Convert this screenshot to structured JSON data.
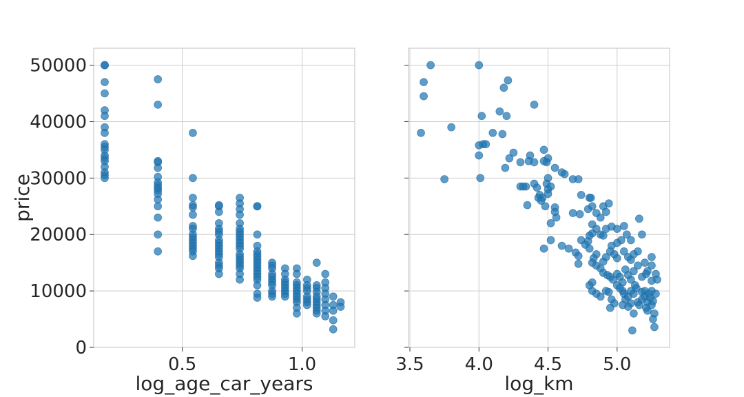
{
  "chart_data": [
    {
      "type": "scatter",
      "xlabel": "log_age_car_years",
      "ylabel": "price",
      "xlim": [
        0.13,
        1.22
      ],
      "ylim": [
        0,
        53000
      ],
      "xticks": [
        0.5,
        1.0
      ],
      "xtick_labels": [
        "0.5",
        "1.0"
      ],
      "yticks": [
        0,
        10000,
        20000,
        30000,
        40000,
        50000
      ],
      "ytick_labels": [
        "0",
        "10000",
        "20000",
        "30000",
        "40000",
        "50000"
      ],
      "grid": true,
      "color": "#1f77b4",
      "points": [
        [
          0.176,
          50000
        ],
        [
          0.176,
          50000
        ],
        [
          0.176,
          47000
        ],
        [
          0.176,
          45000
        ],
        [
          0.176,
          42000
        ],
        [
          0.176,
          41000
        ],
        [
          0.176,
          39000
        ],
        [
          0.176,
          38000
        ],
        [
          0.176,
          36000
        ],
        [
          0.176,
          35500
        ],
        [
          0.176,
          35000
        ],
        [
          0.176,
          34000
        ],
        [
          0.176,
          33500
        ],
        [
          0.176,
          33000
        ],
        [
          0.176,
          32000
        ],
        [
          0.176,
          31000
        ],
        [
          0.176,
          30500
        ],
        [
          0.176,
          30000
        ],
        [
          0.398,
          47500
        ],
        [
          0.398,
          43000
        ],
        [
          0.398,
          33000
        ],
        [
          0.398,
          32800
        ],
        [
          0.398,
          31800
        ],
        [
          0.398,
          30200
        ],
        [
          0.398,
          29200
        ],
        [
          0.398,
          28700
        ],
        [
          0.398,
          28200
        ],
        [
          0.398,
          27800
        ],
        [
          0.398,
          27200
        ],
        [
          0.398,
          26200
        ],
        [
          0.398,
          25000
        ],
        [
          0.398,
          23000
        ],
        [
          0.398,
          20000
        ],
        [
          0.398,
          17000
        ],
        [
          0.544,
          38000
        ],
        [
          0.544,
          30000
        ],
        [
          0.544,
          26500
        ],
        [
          0.544,
          25200
        ],
        [
          0.544,
          24800
        ],
        [
          0.544,
          23500
        ],
        [
          0.544,
          21500
        ],
        [
          0.544,
          21000
        ],
        [
          0.544,
          20000
        ],
        [
          0.544,
          19500
        ],
        [
          0.544,
          19000
        ],
        [
          0.544,
          18500
        ],
        [
          0.544,
          18000
        ],
        [
          0.544,
          17500
        ],
        [
          0.544,
          17000
        ],
        [
          0.544,
          16200
        ],
        [
          0.653,
          25200
        ],
        [
          0.653,
          25000
        ],
        [
          0.653,
          24000
        ],
        [
          0.653,
          22000
        ],
        [
          0.653,
          21000
        ],
        [
          0.653,
          20500
        ],
        [
          0.653,
          20000
        ],
        [
          0.653,
          19000
        ],
        [
          0.653,
          18500
        ],
        [
          0.653,
          18000
        ],
        [
          0.653,
          17500
        ],
        [
          0.653,
          17000
        ],
        [
          0.653,
          16500
        ],
        [
          0.653,
          16000
        ],
        [
          0.653,
          15000
        ],
        [
          0.653,
          14500
        ],
        [
          0.653,
          14000
        ],
        [
          0.653,
          13000
        ],
        [
          0.74,
          26500
        ],
        [
          0.74,
          25500
        ],
        [
          0.74,
          24500
        ],
        [
          0.74,
          23500
        ],
        [
          0.74,
          22000
        ],
        [
          0.74,
          21000
        ],
        [
          0.74,
          20500
        ],
        [
          0.74,
          20000
        ],
        [
          0.74,
          19500
        ],
        [
          0.74,
          19000
        ],
        [
          0.74,
          18500
        ],
        [
          0.74,
          18000
        ],
        [
          0.74,
          17500
        ],
        [
          0.74,
          16500
        ],
        [
          0.74,
          16000
        ],
        [
          0.74,
          15500
        ],
        [
          0.74,
          15000
        ],
        [
          0.74,
          14500
        ],
        [
          0.74,
          14000
        ],
        [
          0.74,
          13000
        ],
        [
          0.74,
          12000
        ],
        [
          0.813,
          25000
        ],
        [
          0.813,
          25000
        ],
        [
          0.813,
          20000
        ],
        [
          0.813,
          18000
        ],
        [
          0.813,
          17000
        ],
        [
          0.813,
          16500
        ],
        [
          0.813,
          16000
        ],
        [
          0.813,
          15500
        ],
        [
          0.813,
          15000
        ],
        [
          0.813,
          14500
        ],
        [
          0.813,
          14000
        ],
        [
          0.813,
          13500
        ],
        [
          0.813,
          13000
        ],
        [
          0.813,
          12500
        ],
        [
          0.813,
          12000
        ],
        [
          0.813,
          11000
        ],
        [
          0.813,
          9500
        ],
        [
          0.813,
          8800
        ],
        [
          0.875,
          15000
        ],
        [
          0.875,
          14500
        ],
        [
          0.875,
          14000
        ],
        [
          0.875,
          13000
        ],
        [
          0.875,
          12500
        ],
        [
          0.875,
          12000
        ],
        [
          0.875,
          11500
        ],
        [
          0.875,
          11000
        ],
        [
          0.875,
          10000
        ],
        [
          0.875,
          9500
        ],
        [
          0.875,
          9000
        ],
        [
          0.929,
          14000
        ],
        [
          0.929,
          13000
        ],
        [
          0.929,
          12000
        ],
        [
          0.929,
          11500
        ],
        [
          0.929,
          11000
        ],
        [
          0.929,
          10500
        ],
        [
          0.929,
          10000
        ],
        [
          0.929,
          9500
        ],
        [
          0.929,
          9000
        ],
        [
          0.978,
          14000
        ],
        [
          0.978,
          13000
        ],
        [
          0.978,
          11500
        ],
        [
          0.978,
          11000
        ],
        [
          0.978,
          10500
        ],
        [
          0.978,
          10000
        ],
        [
          0.978,
          9500
        ],
        [
          0.978,
          9000
        ],
        [
          0.978,
          8500
        ],
        [
          0.978,
          8000
        ],
        [
          0.978,
          7000
        ],
        [
          0.978,
          6000
        ],
        [
          1.021,
          12000
        ],
        [
          1.021,
          11000
        ],
        [
          1.021,
          10500
        ],
        [
          1.021,
          10000
        ],
        [
          1.021,
          9000
        ],
        [
          1.021,
          8500
        ],
        [
          1.021,
          8000
        ],
        [
          1.021,
          7500
        ],
        [
          1.061,
          15000
        ],
        [
          1.061,
          11000
        ],
        [
          1.061,
          10500
        ],
        [
          1.061,
          9800
        ],
        [
          1.061,
          9000
        ],
        [
          1.061,
          8500
        ],
        [
          1.061,
          8000
        ],
        [
          1.061,
          7500
        ],
        [
          1.061,
          7000
        ],
        [
          1.061,
          6500
        ],
        [
          1.061,
          6000
        ],
        [
          1.097,
          13000
        ],
        [
          1.097,
          11500
        ],
        [
          1.097,
          10500
        ],
        [
          1.097,
          9500
        ],
        [
          1.097,
          8500
        ],
        [
          1.097,
          7500
        ],
        [
          1.097,
          6500
        ],
        [
          1.097,
          5500
        ],
        [
          1.13,
          9000
        ],
        [
          1.13,
          7500
        ],
        [
          1.13,
          6500
        ],
        [
          1.13,
          4800
        ],
        [
          1.13,
          3200
        ],
        [
          1.161,
          8000
        ],
        [
          1.161,
          7200
        ]
      ]
    },
    {
      "type": "scatter",
      "xlabel": "log_km",
      "ylabel": "",
      "xlim": [
        3.49,
        5.38
      ],
      "ylim": [
        0,
        53000
      ],
      "xticks": [
        3.5,
        4.0,
        4.5,
        5.0
      ],
      "xtick_labels": [
        "3.5",
        "4.0",
        "4.5",
        "5.0"
      ],
      "yticks": [
        0,
        10000,
        20000,
        30000,
        40000,
        50000
      ],
      "ytick_labels": [],
      "grid": true,
      "color": "#1f77b4",
      "points": [
        [
          3.65,
          50000
        ],
        [
          3.6,
          47000
        ],
        [
          3.6,
          44500
        ],
        [
          3.58,
          38000
        ],
        [
          3.8,
          39000
        ],
        [
          3.75,
          29800
        ],
        [
          4.0,
          50000
        ],
        [
          4.02,
          41000
        ],
        [
          4.0,
          35800
        ],
        [
          4.03,
          36000
        ],
        [
          4.05,
          36000
        ],
        [
          4.0,
          34000
        ],
        [
          4.01,
          30000
        ],
        [
          4.15,
          41800
        ],
        [
          4.2,
          41000
        ],
        [
          4.18,
          46000
        ],
        [
          4.21,
          47300
        ],
        [
          4.1,
          38000
        ],
        [
          4.17,
          37800
        ],
        [
          4.19,
          31800
        ],
        [
          4.4,
          43000
        ],
        [
          4.25,
          34500
        ],
        [
          4.22,
          33500
        ],
        [
          4.3,
          32800
        ],
        [
          4.37,
          34000
        ],
        [
          4.36,
          33000
        ],
        [
          4.4,
          32800
        ],
        [
          4.47,
          35000
        ],
        [
          4.5,
          33500
        ],
        [
          4.49,
          32800
        ],
        [
          4.47,
          33000
        ],
        [
          4.55,
          31800
        ],
        [
          4.62,
          30700
        ],
        [
          4.6,
          31000
        ],
        [
          4.68,
          29800
        ],
        [
          4.72,
          29800
        ],
        [
          4.5,
          30000
        ],
        [
          4.49,
          29000
        ],
        [
          4.5,
          28000
        ],
        [
          4.52,
          28500
        ],
        [
          4.4,
          29000
        ],
        [
          4.42,
          28300
        ],
        [
          4.3,
          28500
        ],
        [
          4.34,
          28500
        ],
        [
          4.32,
          28500
        ],
        [
          4.44,
          27000
        ],
        [
          4.43,
          26500
        ],
        [
          4.46,
          26500
        ],
        [
          4.45,
          26000
        ],
        [
          4.5,
          27200
        ],
        [
          4.48,
          25000
        ],
        [
          4.35,
          25200
        ],
        [
          4.74,
          27000
        ],
        [
          4.8,
          26500
        ],
        [
          4.81,
          26500
        ],
        [
          4.79,
          24500
        ],
        [
          4.82,
          25000
        ],
        [
          4.73,
          23600
        ],
        [
          4.68,
          23800
        ],
        [
          4.55,
          24800
        ],
        [
          4.55,
          24000
        ],
        [
          4.56,
          23000
        ],
        [
          4.52,
          22000
        ],
        [
          4.9,
          25000
        ],
        [
          4.94,
          25500
        ],
        [
          4.92,
          24000
        ],
        [
          4.85,
          23800
        ],
        [
          4.88,
          23000
        ],
        [
          4.82,
          21800
        ],
        [
          4.85,
          21000
        ],
        [
          4.82,
          20200
        ],
        [
          4.8,
          19800
        ],
        [
          4.88,
          20000
        ],
        [
          4.9,
          19800
        ],
        [
          4.92,
          21000
        ],
        [
          4.96,
          21400
        ],
        [
          5.0,
          21000
        ],
        [
          5.05,
          21500
        ],
        [
          5.07,
          20000
        ],
        [
          5.1,
          19000
        ],
        [
          5.16,
          22800
        ],
        [
          5.18,
          20000
        ],
        [
          5.03,
          19000
        ],
        [
          5.0,
          18500
        ],
        [
          4.96,
          18000
        ],
        [
          4.74,
          19000
        ],
        [
          4.77,
          18200
        ],
        [
          4.79,
          18800
        ],
        [
          4.52,
          19000
        ],
        [
          4.6,
          18000
        ],
        [
          4.65,
          17500
        ],
        [
          4.7,
          16800
        ],
        [
          4.72,
          16200
        ],
        [
          4.72,
          14800
        ],
        [
          4.47,
          17500
        ],
        [
          4.8,
          17500
        ],
        [
          4.85,
          16500
        ],
        [
          4.83,
          15800
        ],
        [
          4.82,
          15000
        ],
        [
          4.85,
          14500
        ],
        [
          4.88,
          14000
        ],
        [
          4.9,
          15200
        ],
        [
          4.92,
          16000
        ],
        [
          4.95,
          17000
        ],
        [
          4.98,
          16500
        ],
        [
          5.0,
          15800
        ],
        [
          5.05,
          17000
        ],
        [
          5.08,
          16000
        ],
        [
          5.1,
          15500
        ],
        [
          5.12,
          16500
        ],
        [
          5.15,
          17000
        ],
        [
          5.2,
          15000
        ],
        [
          5.22,
          13500
        ],
        [
          5.25,
          14500
        ],
        [
          5.25,
          16000
        ],
        [
          4.9,
          13200
        ],
        [
          4.93,
          12800
        ],
        [
          4.95,
          12500
        ],
        [
          4.97,
          12000
        ],
        [
          5.0,
          13000
        ],
        [
          5.02,
          12500
        ],
        [
          5.04,
          11500
        ],
        [
          5.06,
          13800
        ],
        [
          5.08,
          12800
        ],
        [
          5.1,
          12000
        ],
        [
          5.12,
          13500
        ],
        [
          5.15,
          14500
        ],
        [
          5.18,
          12500
        ],
        [
          5.21,
          13000
        ],
        [
          5.28,
          13000
        ],
        [
          5.29,
          12000
        ],
        [
          5.25,
          11800
        ],
        [
          4.8,
          11000
        ],
        [
          4.82,
          11500
        ],
        [
          4.82,
          10000
        ],
        [
          4.85,
          9500
        ],
        [
          4.88,
          9000
        ],
        [
          4.92,
          10000
        ],
        [
          4.94,
          9800
        ],
        [
          4.96,
          8500
        ],
        [
          4.98,
          7800
        ],
        [
          4.95,
          7000
        ],
        [
          5.0,
          11000
        ],
        [
          5.02,
          10500
        ],
        [
          5.04,
          10000
        ],
        [
          5.05,
          9500
        ],
        [
          5.06,
          8500
        ],
        [
          5.08,
          9000
        ],
        [
          5.1,
          10000
        ],
        [
          5.1,
          7800
        ],
        [
          5.12,
          9500
        ],
        [
          5.13,
          11000
        ],
        [
          5.14,
          10500
        ],
        [
          5.15,
          8000
        ],
        [
          5.16,
          7500
        ],
        [
          5.18,
          9800
        ],
        [
          5.18,
          8500
        ],
        [
          5.2,
          10000
        ],
        [
          5.2,
          9000
        ],
        [
          5.21,
          7000
        ],
        [
          5.22,
          8000
        ],
        [
          5.22,
          6500
        ],
        [
          5.23,
          9500
        ],
        [
          5.24,
          8800
        ],
        [
          5.25,
          10000
        ],
        [
          5.25,
          7500
        ],
        [
          5.26,
          8200
        ],
        [
          5.27,
          6000
        ],
        [
          5.28,
          9500
        ],
        [
          5.26,
          5000
        ],
        [
          5.27,
          3600
        ],
        [
          5.11,
          3000
        ],
        [
          5.12,
          6000
        ],
        [
          5.08,
          7200
        ],
        [
          5.04,
          7500
        ]
      ]
    }
  ]
}
